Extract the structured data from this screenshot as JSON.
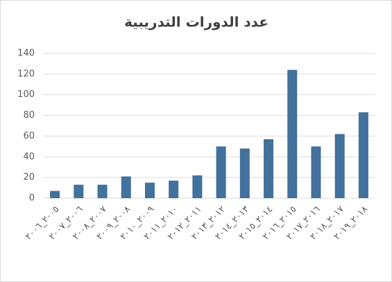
{
  "chart_data": {
    "type": "bar",
    "title": "عدد الدورات التدريبية",
    "categories": [
      "٢٠٠٥_٢٠٠٦",
      "٢٠٠٦_٢٠٠٧",
      "٢٠٠٧_٢٠٠٨",
      "٢٠٠٨_٢٠٠٩",
      "٢٠٠٩_٢٠١٠",
      "٢٠١٠_٢٠١١",
      "٢٠١١_٢٠١٢",
      "٢٠١٢_٢٠١٣",
      "٢٠١٣_٢٠١٤",
      "٢٠١٤_٢٠١٥",
      "٢٠١٥_٢٠١٦",
      "٢٠١٦_٢٠١٧",
      "٢٠١٧_٢٠١٨",
      "٢٠١٨_٢٠١٩"
    ],
    "values": [
      7,
      13,
      13,
      21,
      15,
      17,
      22,
      50,
      48,
      57,
      124,
      50,
      62,
      83
    ],
    "color": "#41719c",
    "ylim": [
      0,
      140
    ],
    "yticks": [
      0,
      20,
      40,
      60,
      80,
      100,
      120,
      140
    ],
    "grid": true
  }
}
